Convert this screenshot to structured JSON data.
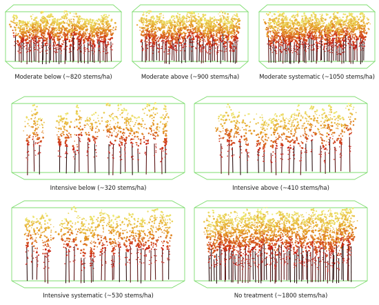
{
  "colors": {
    "box_outline": "#7ddc6e",
    "crown_top": "#eef27a",
    "crown_mid": "#e6a12a",
    "crown_low": "#c92218",
    "stem_dark": "#5a1414",
    "stem_black": "#2a1010",
    "background": "#ffffff"
  },
  "panels": [
    {
      "id": "moderate-below",
      "label": "Moderate below (~820 stems/ha)",
      "stems_per_ha": 820
    },
    {
      "id": "moderate-above",
      "label": "Moderate above (~900 stems/ha)",
      "stems_per_ha": 900
    },
    {
      "id": "moderate-systematic",
      "label": "Moderate systematic (~1050 stems/ha)",
      "stems_per_ha": 1050
    },
    {
      "id": "intensive-below",
      "label": "Intensive below (~320 stems/ha)",
      "stems_per_ha": 320
    },
    {
      "id": "intensive-above",
      "label": "Intensive above (~410 stems/ha)",
      "stems_per_ha": 410
    },
    {
      "id": "intensive-systematic",
      "label": "Intensive systematic (~530 stems/ha)",
      "stems_per_ha": 530
    },
    {
      "id": "no-treatment",
      "label": "No treatment (~1800 stems/ha)",
      "stems_per_ha": 1800
    }
  ]
}
